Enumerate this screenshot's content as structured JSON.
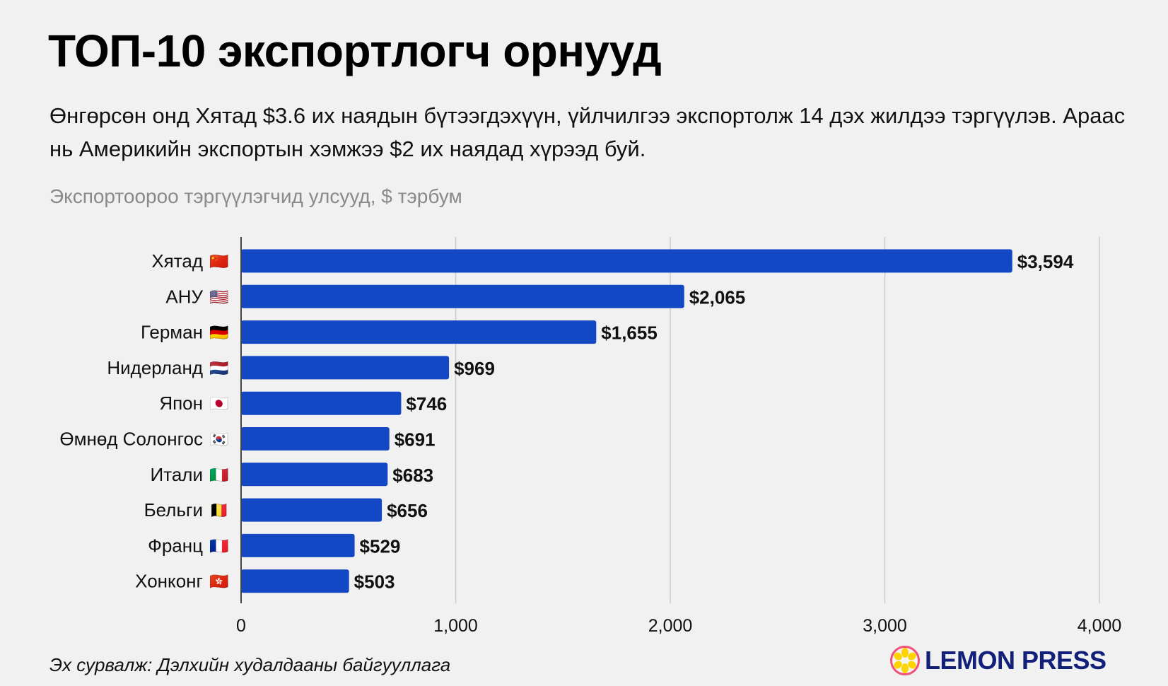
{
  "header": {
    "title": "ТОП-10 экспортлогч орнууд",
    "subtitle": "Өнгөрсөн онд Хятад $3.6 их наядын бүтээгдэхүүн, үйлчилгээ экспортолж 14 дэх жилдээ тэргүүлэв. Араас нь Америкийн экспортын хэмжээ $2 их наядад хүрээд буй.",
    "unit_label": "Экспортоороо тэргүүлэгчид улсууд, $ тэрбум"
  },
  "footer": {
    "source": "Эх сурвалж: Дэлхийн худалдааны байгууллага",
    "logo_text": "LEMON PRESS"
  },
  "colors": {
    "bar": "#1347c4",
    "grid": "#cccccc",
    "axis": "#444444",
    "logo_text": "#13207a",
    "logo_ring": "#f0507a",
    "logo_fruit": "#ffd400"
  },
  "chart_data": {
    "type": "bar",
    "orientation": "horizontal",
    "title": "ТОП-10 экспортлогч орнууд",
    "xlabel": "",
    "ylabel": "Экспортоороо тэргүүлэгчид улсууд, $ тэрбум",
    "categories": [
      "Хятад",
      "АНУ",
      "Герман",
      "Нидерланд",
      "Япон",
      "Өмнөд Солонгос",
      "Итали",
      "Бельги",
      "Франц",
      "Хонконг"
    ],
    "flags": [
      "🇨🇳",
      "🇺🇸",
      "🇩🇪",
      "🇳🇱",
      "🇯🇵",
      "🇰🇷",
      "🇮🇹",
      "🇧🇪",
      "🇫🇷",
      "🇭🇰"
    ],
    "values": [
      3594,
      2065,
      1655,
      969,
      746,
      691,
      683,
      656,
      529,
      503
    ],
    "value_labels": [
      "$3,594",
      "$2,065",
      "$1,655",
      "$969",
      "$746",
      "$691",
      "$683",
      "$656",
      "$529",
      "$503"
    ],
    "xlim": [
      0,
      4000
    ],
    "xticks": [
      0,
      1000,
      2000,
      3000,
      4000
    ],
    "xtick_labels": [
      "0",
      "1,000",
      "2,000",
      "3,000",
      "4,000"
    ],
    "grid": true,
    "legend": "none"
  }
}
